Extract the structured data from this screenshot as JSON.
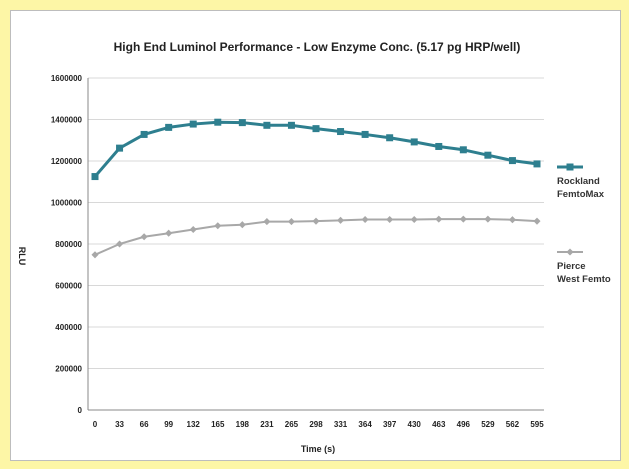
{
  "chart_data": {
    "type": "line",
    "title": "High End Luminol Performance - Low Enzyme Conc. (5.17 pg HRP/well)",
    "xlabel": "Time (s)",
    "ylabel": "RLU",
    "categories": [
      "0",
      "33",
      "66",
      "99",
      "132",
      "165",
      "198",
      "231",
      "265",
      "298",
      "331",
      "364",
      "397",
      "430",
      "463",
      "496",
      "529",
      "562",
      "595"
    ],
    "ylim": [
      0,
      1600000
    ],
    "yticks": [
      "0",
      "200000",
      "400000",
      "600000",
      "800000",
      "1000000",
      "1200000",
      "1400000",
      "1600000"
    ],
    "grid": true,
    "legend_position": "right",
    "series": [
      {
        "name_lines": [
          "Rockland",
          "FemtoMax"
        ],
        "color": "#2e7f8f",
        "marker": "square",
        "values": [
          1125000,
          1262000,
          1328000,
          1362000,
          1378000,
          1387000,
          1385000,
          1372000,
          1372000,
          1356000,
          1342000,
          1328000,
          1312000,
          1292000,
          1270000,
          1254000,
          1228000,
          1202000,
          1186000
        ]
      },
      {
        "name_lines": [
          "Pierce",
          "West Femto"
        ],
        "color": "#a8a8a8",
        "marker": "diamond",
        "values": [
          748000,
          800000,
          835000,
          852000,
          870000,
          888000,
          893000,
          908000,
          908000,
          910000,
          914000,
          918000,
          918000,
          918000,
          920000,
          920000,
          920000,
          917000,
          910000
        ]
      }
    ]
  }
}
